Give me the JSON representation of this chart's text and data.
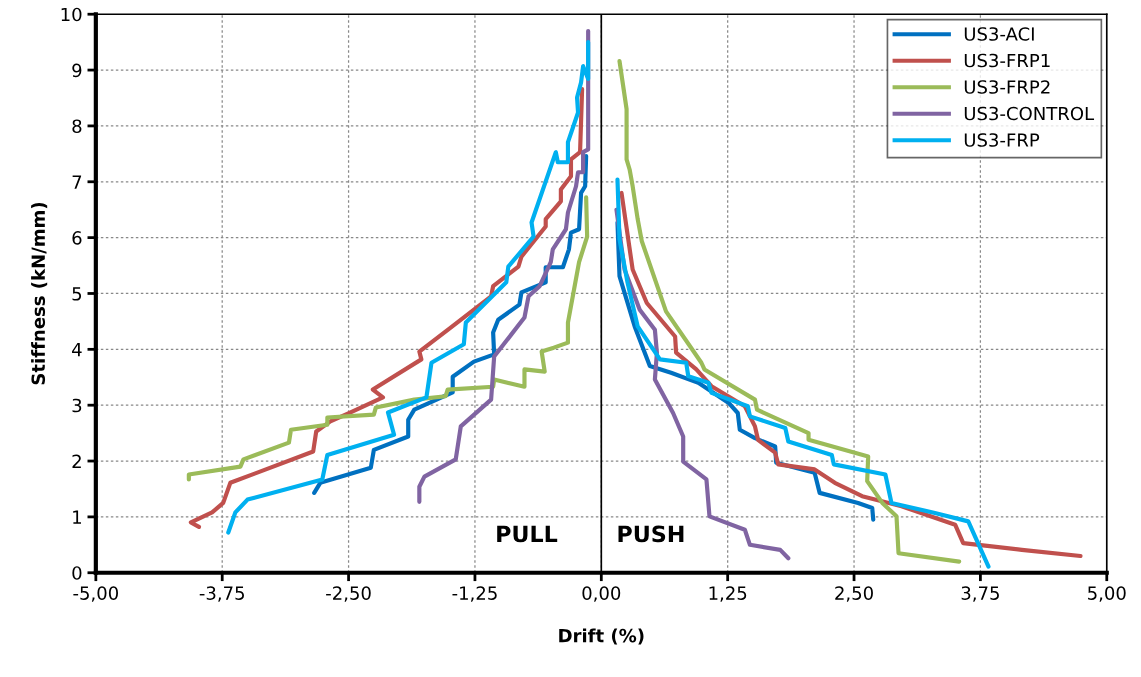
{
  "chart_data": {
    "type": "line",
    "xlabel": "Drift (%)",
    "ylabel": "Stiffness (kN/mm)",
    "xlim": [
      -5,
      5
    ],
    "ylim": [
      0,
      10
    ],
    "xticks": [
      {
        "value": -5,
        "label": "-5,00"
      },
      {
        "value": -3.75,
        "label": "-3,75"
      },
      {
        "value": -2.5,
        "label": "-2,50"
      },
      {
        "value": -1.25,
        "label": "-1,25"
      },
      {
        "value": 0,
        "label": "0,00"
      },
      {
        "value": 1.25,
        "label": "1,25"
      },
      {
        "value": 2.5,
        "label": "2,50"
      },
      {
        "value": 3.75,
        "label": "3,75"
      },
      {
        "value": 5,
        "label": "5,00"
      }
    ],
    "yticks": [
      0,
      1,
      2,
      3,
      4,
      5,
      6,
      7,
      8,
      9,
      10
    ],
    "grid": true,
    "legend": "top right",
    "marker": "none",
    "line_style": "solid",
    "ref_lines": [
      {
        "axis": "x",
        "value": 0,
        "color": "#000000"
      }
    ],
    "annotations": [
      "PULL",
      "PUSH"
    ],
    "series": [
      {
        "name": "US3-ACI",
        "color": "#0070c0",
        "x": [
          -0.15,
          -0.16,
          -0.2,
          -0.22,
          -0.3,
          -0.32,
          -0.38,
          -0.55,
          -0.55,
          -0.79,
          -0.81,
          -1.02,
          -1.07,
          -1.06,
          -1.26,
          -1.47,
          -1.47,
          -1.85,
          -1.91,
          -1.91,
          -2.25,
          -2.28,
          -2.78,
          -2.84,
          null,
          0.16,
          0.18,
          0.33,
          0.48,
          0.69,
          0.96,
          1.26,
          1.35,
          1.37,
          1.52,
          1.72,
          1.73,
          2.11,
          2.16,
          2.54,
          2.68,
          2.69
        ],
        "values": [
          7.46,
          6.92,
          6.8,
          6.15,
          6.09,
          5.79,
          5.47,
          5.47,
          5.2,
          5.02,
          4.8,
          4.53,
          4.3,
          3.91,
          3.78,
          3.51,
          3.23,
          2.92,
          2.74,
          2.44,
          2.2,
          1.88,
          1.61,
          1.43,
          null,
          6.27,
          5.31,
          4.41,
          3.7,
          3.58,
          3.4,
          3.04,
          2.86,
          2.56,
          2.41,
          2.26,
          1.97,
          1.79,
          1.43,
          1.25,
          1.16,
          0.95
        ]
      },
      {
        "name": "US3-FRP1",
        "color": "#c0504d",
        "x": [
          -0.19,
          -0.21,
          -0.3,
          -0.3,
          -0.4,
          -0.4,
          -0.55,
          -0.55,
          -0.79,
          -0.82,
          -1.07,
          -1.09,
          -1.26,
          -1.49,
          -1.8,
          -1.78,
          -2.26,
          -2.16,
          -2.48,
          -2.68,
          -2.82,
          -2.85,
          -3.67,
          -3.74,
          -3.85,
          -4.06,
          -3.98,
          null,
          0.2,
          0.31,
          0.45,
          0.73,
          0.74,
          0.94,
          1.09,
          1.42,
          1.52,
          1.55,
          1.72,
          1.75,
          2.11,
          2.31,
          2.58,
          2.97,
          3.5,
          3.58,
          4.16,
          4.74
        ],
        "values": [
          8.66,
          7.53,
          7.4,
          7.1,
          6.86,
          6.65,
          6.33,
          6.2,
          5.66,
          5.48,
          5.13,
          4.95,
          4.71,
          4.39,
          3.96,
          3.82,
          3.28,
          3.14,
          2.87,
          2.71,
          2.53,
          2.17,
          1.61,
          1.25,
          1.08,
          0.9,
          0.82,
          null,
          6.8,
          5.43,
          4.83,
          4.23,
          3.94,
          3.64,
          3.34,
          2.98,
          2.62,
          2.38,
          2.15,
          1.94,
          1.85,
          1.61,
          1.37,
          1.19,
          0.86,
          0.53,
          0.41,
          0.3
        ]
      },
      {
        "name": "US3-FRP2",
        "color": "#9bbb59",
        "x": [
          -0.15,
          -0.14,
          -0.22,
          -0.33,
          -0.33,
          -0.47,
          -0.59,
          -0.56,
          -0.76,
          -0.76,
          -1.06,
          -1.07,
          -1.52,
          -1.54,
          -1.85,
          -2.23,
          -2.25,
          -2.71,
          -2.71,
          -3.07,
          -3.09,
          -3.54,
          -3.57,
          -4.08,
          -4.08,
          null,
          0.18,
          0.25,
          0.25,
          0.28,
          0.31,
          0.36,
          0.4,
          0.64,
          0.99,
          1.02,
          1.52,
          1.54,
          2.05,
          2.05,
          2.64,
          2.63,
          2.78,
          2.92,
          2.94,
          3.54
        ],
        "values": [
          6.72,
          6.02,
          5.56,
          4.48,
          4.12,
          4.03,
          3.96,
          3.6,
          3.64,
          3.33,
          3.46,
          3.33,
          3.28,
          3.16,
          3.1,
          2.96,
          2.83,
          2.78,
          2.65,
          2.56,
          2.33,
          2.03,
          1.9,
          1.76,
          1.67,
          null,
          9.16,
          8.3,
          7.4,
          7.22,
          6.92,
          6.33,
          5.94,
          4.68,
          3.76,
          3.64,
          3.1,
          2.92,
          2.5,
          2.38,
          2.08,
          1.64,
          1.25,
          1.01,
          0.35,
          0.2
        ]
      },
      {
        "name": "US3-CONTROL",
        "color": "#8064a2",
        "x": [
          -0.13,
          -0.13,
          -0.18,
          -0.18,
          -0.23,
          -0.25,
          -0.33,
          -0.35,
          -0.48,
          -0.5,
          -0.61,
          -0.72,
          -0.76,
          -1.06,
          -1.09,
          -1.39,
          -1.44,
          -1.75,
          -1.8,
          -1.8,
          null,
          0.15,
          0.23,
          0.38,
          0.53,
          0.55,
          0.53,
          0.71,
          0.81,
          0.81,
          1.04,
          1.07,
          1.42,
          1.47,
          1.77,
          1.85
        ],
        "values": [
          9.7,
          7.58,
          7.53,
          7.17,
          7.17,
          6.92,
          6.45,
          6.15,
          5.79,
          5.56,
          5.13,
          4.95,
          4.57,
          3.87,
          3.1,
          2.62,
          2.03,
          1.72,
          1.54,
          1.27,
          null,
          6.5,
          5.43,
          4.71,
          4.35,
          3.94,
          3.46,
          2.86,
          2.44,
          1.99,
          1.67,
          1.01,
          0.77,
          0.5,
          0.41,
          0.26
        ]
      },
      {
        "name": "US3-FRP",
        "color": "#00b0f0",
        "x": [
          -0.13,
          -0.13,
          -0.18,
          -0.2,
          -0.24,
          -0.23,
          -0.33,
          -0.33,
          -0.43,
          -0.45,
          -0.69,
          -0.67,
          -0.92,
          -0.94,
          -1.34,
          -1.36,
          -1.68,
          -1.73,
          -2.11,
          -2.05,
          -2.71,
          -2.76,
          -3.5,
          -3.62,
          -3.69,
          null,
          0.16,
          0.18,
          0.26,
          0.36,
          0.58,
          0.84,
          0.86,
          1.06,
          1.09,
          1.45,
          1.47,
          1.82,
          1.85,
          2.28,
          2.3,
          2.81,
          2.87,
          3.3,
          3.63,
          3.83
        ],
        "values": [
          9.5,
          8.84,
          9.07,
          8.78,
          8.51,
          8.24,
          7.71,
          7.35,
          7.35,
          7.53,
          6.27,
          6.02,
          5.48,
          5.2,
          4.48,
          4.09,
          3.76,
          3.14,
          2.87,
          2.47,
          2.11,
          1.67,
          1.31,
          1.08,
          0.72,
          null,
          7.04,
          5.97,
          5.19,
          4.41,
          3.82,
          3.76,
          3.52,
          3.4,
          3.22,
          2.98,
          2.8,
          2.59,
          2.35,
          2.11,
          1.94,
          1.76,
          1.25,
          1.07,
          0.92,
          0.11
        ]
      }
    ]
  }
}
